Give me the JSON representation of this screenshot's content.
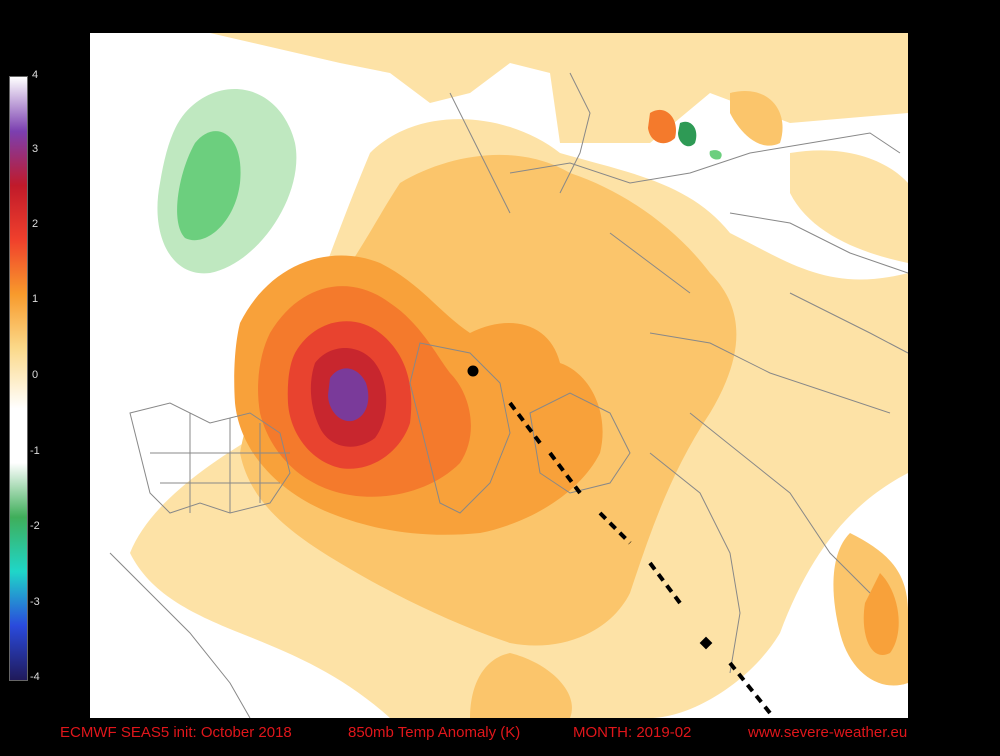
{
  "caption": {
    "model": "ECMWF SEAS5 init: October 2018",
    "field": "850mb Temp Anomaly (K)",
    "month": "MONTH: 2019-02",
    "website": "www.severe-weather.eu"
  },
  "colorbar": {
    "ticks": [
      "4",
      "3",
      "2",
      "1",
      "0",
      "-1",
      "-2",
      "-3",
      "-4"
    ],
    "colors_top_to_bottom": [
      "#ffffff",
      "#7b3fb0",
      "#c01a2a",
      "#f0402c",
      "#f89a2c",
      "#fbd98a",
      "#ffffff",
      "#ffffff",
      "#3fae5a",
      "#1fd6c8",
      "#2a4adc",
      "#201a5a"
    ]
  },
  "anomaly_colors": {
    "weak_warm": "#fde2a6",
    "warm": "#fbc56b",
    "orange": "#f8a13a",
    "dark_orange": "#f47a2c",
    "red": "#e8432f",
    "dark_red": "#c8262e",
    "purple": "#7a3a9a",
    "weak_cold": "#bfe8c0",
    "cold": "#6ccf7e"
  },
  "map": {
    "projection": "polar stereographic, North Hemisphere",
    "boundaries_color": "#888888"
  }
}
